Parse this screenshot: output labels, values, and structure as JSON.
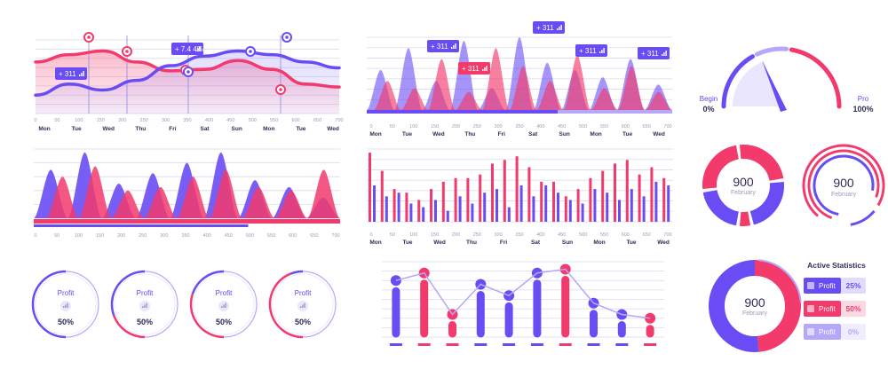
{
  "colors": {
    "purple": "#6a4cf5",
    "pink": "#f23a6c",
    "grid": "#d8d9ee",
    "text": "#2d2f57",
    "muted": "#9a9cb8"
  },
  "chart_data": [
    {
      "id": "wave-lines",
      "type": "line",
      "x_ticks": [
        "0",
        "50",
        "100",
        "150",
        "200",
        "250",
        "300",
        "350",
        "400",
        "450",
        "500",
        "550",
        "600",
        "650",
        "700"
      ],
      "day_labels": [
        "Mon",
        "Tue",
        "Wed",
        "Thu",
        "Fri",
        "Sat",
        "Sun",
        "Mon",
        "Tue",
        "Wed"
      ],
      "series": [
        {
          "color": "#f23a6c",
          "values": [
            70,
            80,
            85,
            70,
            58,
            60,
            72,
            60,
            40,
            36
          ]
        },
        {
          "color": "#6a4cf5",
          "values": [
            25,
            40,
            32,
            45,
            65,
            78,
            85,
            80,
            70,
            62
          ]
        }
      ],
      "callouts": [
        "+ 7.4 4%",
        "+ 311"
      ]
    },
    {
      "id": "area-peaks-top",
      "type": "area",
      "x_ticks": [
        "0",
        "50",
        "100",
        "150",
        "200",
        "250",
        "300",
        "350",
        "400",
        "450",
        "500",
        "550",
        "600",
        "650",
        "700"
      ],
      "day_labels": [
        "Mon",
        "Tue",
        "Wed",
        "Thu",
        "Fri",
        "Sat",
        "Sun",
        "Mon",
        "Tue",
        "Wed"
      ],
      "series": [
        {
          "color": "#6a4cf5",
          "peaks": [
            55,
            85,
            40,
            95,
            30,
            100,
            65,
            55,
            45,
            70,
            35
          ]
        },
        {
          "color": "#f23a6c",
          "peaks": [
            40,
            30,
            70,
            25,
            85,
            60,
            40,
            75,
            30,
            60,
            25
          ]
        }
      ],
      "callouts": [
        "+ 311",
        "+ 311",
        "+ 311",
        "+ 311",
        "+ 311"
      ]
    },
    {
      "id": "area-peaks-left",
      "type": "area",
      "x_ticks": [
        "0",
        "50",
        "100",
        "150",
        "200",
        "250",
        "300",
        "350",
        "400",
        "450",
        "500",
        "550",
        "600",
        "650",
        "700"
      ],
      "series": [
        {
          "color": "#6a4cf5",
          "peaks": [
            70,
            95,
            50,
            65,
            80,
            95,
            55,
            45,
            30
          ]
        },
        {
          "color": "#f23a6c",
          "peaks": [
            60,
            75,
            40,
            45,
            60,
            70,
            45,
            40,
            70
          ]
        }
      ],
      "progress": 0.7
    },
    {
      "id": "bars-pairs",
      "type": "bar",
      "x_ticks": [
        "0",
        "50",
        "100",
        "150",
        "200",
        "250",
        "300",
        "350",
        "400",
        "450",
        "500",
        "550",
        "600",
        "650",
        "700"
      ],
      "day_labels": [
        "Mon",
        "Tue",
        "Wed",
        "Thu",
        "Fri",
        "Sat",
        "Sun",
        "Mon",
        "Tue",
        "Wed"
      ],
      "series": [
        {
          "color": "#f23a6c",
          "values": [
            95,
            70,
            45,
            40,
            30,
            45,
            55,
            60,
            60,
            65,
            80,
            85,
            90,
            75,
            55,
            55,
            35,
            45,
            60,
            70,
            80,
            85,
            65,
            75,
            60
          ]
        },
        {
          "color": "#6a4cf5",
          "values": [
            50,
            35,
            40,
            25,
            20,
            30,
            15,
            35,
            25,
            40,
            45,
            20,
            50,
            35,
            50,
            40,
            30,
            25,
            45,
            40,
            30,
            45,
            35,
            55,
            50
          ]
        }
      ]
    },
    {
      "id": "gauge",
      "type": "gauge",
      "value": 0.65,
      "begin_label": "Begin",
      "begin_value": "0%",
      "end_label": "Pro",
      "end_value": "100%"
    },
    {
      "id": "donut-1",
      "type": "pie",
      "center_value": "900",
      "center_label": "February",
      "slices": [
        {
          "color": "#f23a6c",
          "value": 45
        },
        {
          "color": "#6a4cf5",
          "value": 55
        }
      ]
    },
    {
      "id": "donut-2",
      "type": "pie",
      "center_value": "900",
      "center_label": "February",
      "rings": [
        0.85,
        0.7,
        0.55
      ]
    },
    {
      "id": "profit-rings",
      "type": "pie",
      "items": [
        {
          "label": "Profit",
          "value": "50%",
          "progress": 0.0
        },
        {
          "label": "Profit",
          "value": "50%",
          "progress": 0.35
        },
        {
          "label": "Profit",
          "value": "50%",
          "progress": 0.55
        },
        {
          "label": "Profit",
          "value": "50%",
          "progress": 0.8
        }
      ]
    },
    {
      "id": "lollipop",
      "type": "bar",
      "values": [
        75,
        85,
        30,
        70,
        55,
        85,
        90,
        45,
        30,
        25
      ],
      "colors": [
        "#6a4cf5",
        "#f23a6c",
        "#f23a6c",
        "#6a4cf5",
        "#6a4cf5",
        "#6a4cf5",
        "#f23a6c",
        "#6a4cf5",
        "#6a4cf5",
        "#f23a6c"
      ]
    },
    {
      "id": "active-stats",
      "type": "pie",
      "title": "Active Statistics",
      "center_value": "900",
      "center_label": "February",
      "legend": [
        {
          "label": "Profit",
          "value": "25%",
          "color": "#6a4cf5"
        },
        {
          "label": "Profit",
          "value": "50%",
          "color": "#f23a6c"
        },
        {
          "label": "Profit",
          "value": "0%",
          "color": "#b5a8fb"
        }
      ]
    }
  ]
}
